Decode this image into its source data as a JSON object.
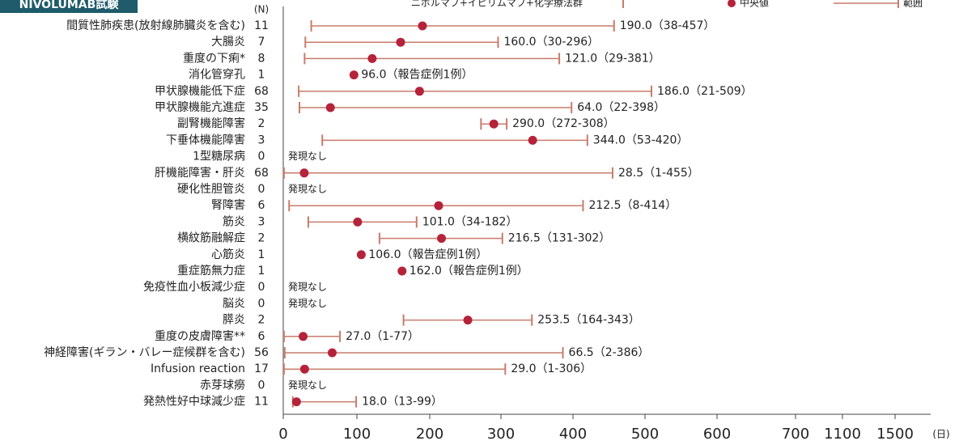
{
  "chart_data": {
    "type": "range",
    "title": "NIVOLUMAB試験",
    "group_label": "ニボルマブ+イピリムマブ+化学療法群",
    "n_label": "(N)",
    "xlabel": "(日)",
    "categories": [
      "間質性肺疾患(放射線肺臓炎を含む)",
      "大腸炎",
      "重度の下痢*",
      "消化管穿孔",
      "甲状腺機能低下症",
      "甲状腺機能亢進症",
      "副腎機能障害",
      "下垂体機能障害",
      "1型糖尿病",
      "肝機能障害・肝炎",
      "硬化性胆管炎",
      "腎障害",
      "筋炎",
      "横紋筋融解症",
      "心筋炎",
      "重症筋無力症",
      "免疫性血小板減少症",
      "脳炎",
      "膵炎",
      "重度の皮膚障害**",
      "神経障害(ギラン・バレー症候群を含む)",
      "Infusion reaction",
      "赤芽球癆",
      "発熱性好中球減少症"
    ],
    "n": [
      11,
      7,
      8,
      1,
      68,
      35,
      2,
      3,
      0,
      68,
      0,
      6,
      3,
      2,
      1,
      1,
      0,
      0,
      2,
      6,
      56,
      17,
      0,
      11
    ],
    "series": [
      {
        "name": "中央値",
        "color": "#b5233a",
        "values": [
          190.0,
          160.0,
          121.0,
          96.0,
          186.0,
          64.0,
          290.0,
          344.0,
          null,
          28.5,
          null,
          212.5,
          101.0,
          216.5,
          106.0,
          162.0,
          null,
          null,
          253.5,
          27.0,
          66.5,
          29.0,
          null,
          18.0
        ]
      },
      {
        "name": "範囲",
        "color": "#c97b6b",
        "low": [
          38,
          30,
          29,
          null,
          21,
          22,
          272,
          53,
          null,
          1,
          null,
          8,
          34,
          131,
          null,
          null,
          null,
          null,
          164,
          1,
          2,
          1,
          null,
          13
        ],
        "high": [
          457,
          296,
          381,
          null,
          509,
          398,
          308,
          420,
          null,
          455,
          null,
          414,
          182,
          302,
          null,
          null,
          null,
          null,
          343,
          77,
          386,
          306,
          null,
          99
        ]
      }
    ],
    "value_labels": [
      "190.0（38-457）",
      "160.0（30-296）",
      "121.0（29-381）",
      "96.0（報告症例1例）",
      "186.0（21-509）",
      "64.0（22-398）",
      "290.0（272-308）",
      "344.0（53-420）",
      "発現なし",
      "28.5（1-455）",
      "発現なし",
      "212.5（8-414）",
      "101.0（34-182）",
      "216.5（131-302）",
      "106.0（報告症例1例）",
      "162.0（報告症例1例）",
      "発現なし",
      "発現なし",
      "253.5（164-343）",
      "27.0（1-77）",
      "66.5（2-386）",
      "29.0（1-306）",
      "発現なし",
      "18.0（13-99）"
    ],
    "xlim": [
      0,
      1500
    ],
    "xticks": [
      0,
      100,
      200,
      300,
      400,
      500,
      600,
      700,
      1100,
      1500
    ]
  }
}
